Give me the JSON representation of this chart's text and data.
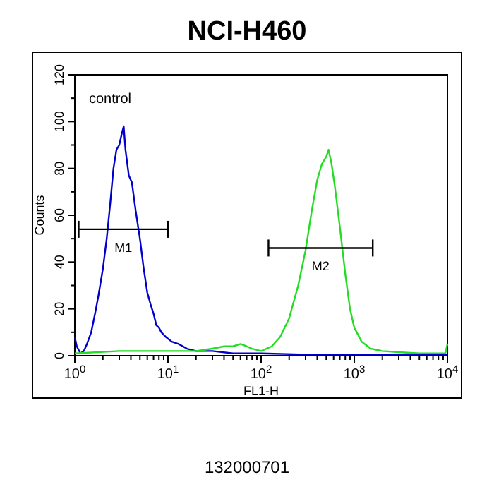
{
  "chart_data": {
    "type": "line",
    "title": "NCI-H460",
    "xlabel": "FL1-H",
    "ylabel": "Counts",
    "log": "x",
    "grid": false,
    "xlim": [
      1,
      10000
    ],
    "ylim": [
      0,
      120
    ],
    "xticks": [
      {
        "value": 1,
        "label": "10$^{0}$"
      },
      {
        "value": 2,
        "label": null
      },
      {
        "value": 3,
        "label": null
      },
      {
        "value": 4,
        "label": null
      },
      {
        "value": 5,
        "label": null
      },
      {
        "value": 6,
        "label": null
      },
      {
        "value": 7,
        "label": null
      },
      {
        "value": 8,
        "label": null
      },
      {
        "value": 9,
        "label": null
      },
      {
        "value": 10,
        "label": "10$^{1}$"
      },
      {
        "value": 20,
        "label": null
      },
      {
        "value": 30,
        "label": null
      },
      {
        "value": 40,
        "label": null
      },
      {
        "value": 50,
        "label": null
      },
      {
        "value": 60,
        "label": null
      },
      {
        "value": 70,
        "label": null
      },
      {
        "value": 80,
        "label": null
      },
      {
        "value": 90,
        "label": null
      },
      {
        "value": 100,
        "label": "10$^{2}$"
      },
      {
        "value": 200,
        "label": null
      },
      {
        "value": 300,
        "label": null
      },
      {
        "value": 400,
        "label": null
      },
      {
        "value": 500,
        "label": null
      },
      {
        "value": 600,
        "label": null
      },
      {
        "value": 700,
        "label": null
      },
      {
        "value": 800,
        "label": null
      },
      {
        "value": 900,
        "label": null
      },
      {
        "value": 1000,
        "label": "10$^{3}$"
      },
      {
        "value": 2000,
        "label": null
      },
      {
        "value": 3000,
        "label": null
      },
      {
        "value": 4000,
        "label": null
      },
      {
        "value": 5000,
        "label": null
      },
      {
        "value": 6000,
        "label": null
      },
      {
        "value": 7000,
        "label": null
      },
      {
        "value": 8000,
        "label": null
      },
      {
        "value": 9000,
        "label": null
      },
      {
        "value": 10000,
        "label": "10$^{4}$"
      }
    ],
    "yticks": [
      0,
      {
        "value": 10,
        "label": null
      },
      20,
      {
        "value": 30,
        "label": null
      },
      40,
      {
        "value": 50,
        "label": null
      },
      60,
      {
        "value": 70,
        "label": null
      },
      80,
      {
        "value": 90,
        "label": null
      },
      100,
      {
        "value": 110,
        "label": null
      },
      120
    ],
    "annotations": [
      "control",
      "132000701"
    ],
    "series": [
      {
        "color": "#0000cc",
        "x": [
          1.0,
          1.05,
          1.15,
          1.25,
          1.35,
          1.5,
          1.65,
          1.8,
          2.0,
          2.2,
          2.4,
          2.6,
          2.8,
          3.0,
          3.2,
          3.35,
          3.5,
          3.8,
          4.1,
          4.5,
          5.0,
          5.5,
          6.0,
          6.5,
          7.0,
          7.5,
          8.0,
          8.5,
          9.5,
          11,
          13,
          16,
          20,
          30,
          50,
          100,
          300,
          1000,
          3000,
          10000
        ],
        "values": [
          8,
          4,
          1,
          2,
          5,
          10,
          18,
          26,
          37,
          50,
          65,
          80,
          88,
          90,
          95,
          98,
          88,
          77,
          74,
          62,
          50,
          37,
          27,
          22,
          18,
          13,
          12,
          10,
          8,
          6,
          5,
          3,
          2,
          2,
          1,
          1,
          0.5,
          0.5,
          0.5,
          0.5
        ]
      },
      {
        "color": "#22dd22",
        "x": [
          1,
          3,
          10,
          20,
          30,
          40,
          50,
          60,
          70,
          80,
          100,
          130,
          160,
          200,
          250,
          300,
          350,
          400,
          450,
          500,
          530,
          570,
          620,
          700,
          800,
          900,
          1000,
          1200,
          1500,
          2000,
          3000,
          5000,
          9500,
          10000
        ],
        "values": [
          1,
          2,
          2,
          2,
          3,
          4,
          4,
          5,
          4,
          3,
          2,
          4,
          8,
          16,
          30,
          45,
          62,
          75,
          82,
          85,
          88,
          82,
          72,
          55,
          35,
          20,
          12,
          6,
          3,
          2,
          1.5,
          1,
          1,
          5
        ]
      },
      {
        "name": "M1",
        "color": "#000000",
        "x": [
          1.1,
          10
        ],
        "values": [
          54,
          54
        ]
      },
      {
        "name": "M2",
        "color": "#000000",
        "x": [
          120,
          1580
        ],
        "values": [
          46,
          46
        ]
      }
    ]
  }
}
